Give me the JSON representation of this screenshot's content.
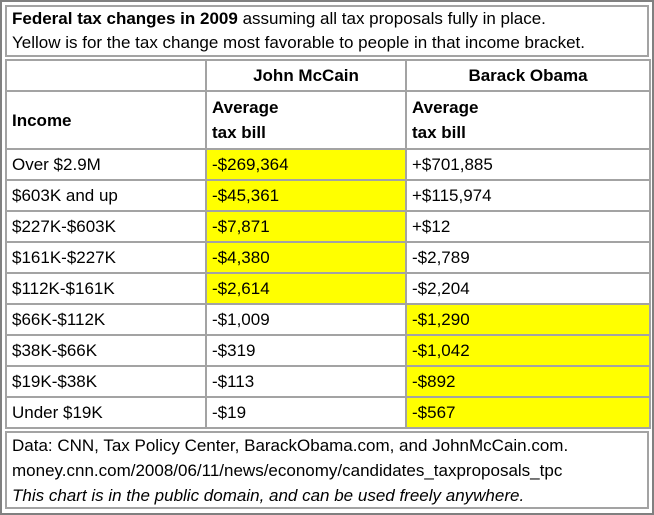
{
  "colors": {
    "highlight": "#ffff00",
    "grid_border": "#a3a3a3",
    "outer_border": "#808080",
    "background": "#ffffff",
    "text": "#000000"
  },
  "chart_data": {
    "type": "table",
    "title_bold": "Federal tax changes in 2009",
    "title_rest": " assuming all tax proposals fully in place.",
    "subtitle": "Yellow is for the tax change most favorable to people in that income bracket.",
    "columns": {
      "mccain": "John McCain",
      "obama": "Barack Obama"
    },
    "row_header": {
      "income": "Income",
      "mccain_sub": "Average\ntax bill",
      "obama_sub": "Average\ntax bill"
    },
    "rows": [
      {
        "income": "Over $2.9M",
        "mccain": "-$269,364",
        "obama": "+$701,885",
        "highlight": "mccain"
      },
      {
        "income": "$603K and up",
        "mccain": "-$45,361",
        "obama": "+$115,974",
        "highlight": "mccain"
      },
      {
        "income": "$227K-$603K",
        "mccain": "-$7,871",
        "obama": "+$12",
        "highlight": "mccain"
      },
      {
        "income": "$161K-$227K",
        "mccain": "-$4,380",
        "obama": "-$2,789",
        "highlight": "mccain"
      },
      {
        "income": "$112K-$161K",
        "mccain": "-$2,614",
        "obama": "-$2,204",
        "highlight": "mccain"
      },
      {
        "income": "$66K-$112K",
        "mccain": "-$1,009",
        "obama": "-$1,290",
        "highlight": "obama"
      },
      {
        "income": "$38K-$66K",
        "mccain": "-$319",
        "obama": "-$1,042",
        "highlight": "obama"
      },
      {
        "income": "$19K-$38K",
        "mccain": "-$113",
        "obama": "-$892",
        "highlight": "obama"
      },
      {
        "income": "Under $19K",
        "mccain": "-$19",
        "obama": "-$567",
        "highlight": "obama"
      }
    ],
    "footnote": {
      "source": "Data: CNN, Tax Policy Center, BarackObama.com, and JohnMcCain.com.",
      "url": "money.cnn.com/2008/06/11/news/economy/candidates_taxproposals_tpc",
      "license": "This chart is in the public domain, and can be used freely anywhere."
    }
  }
}
